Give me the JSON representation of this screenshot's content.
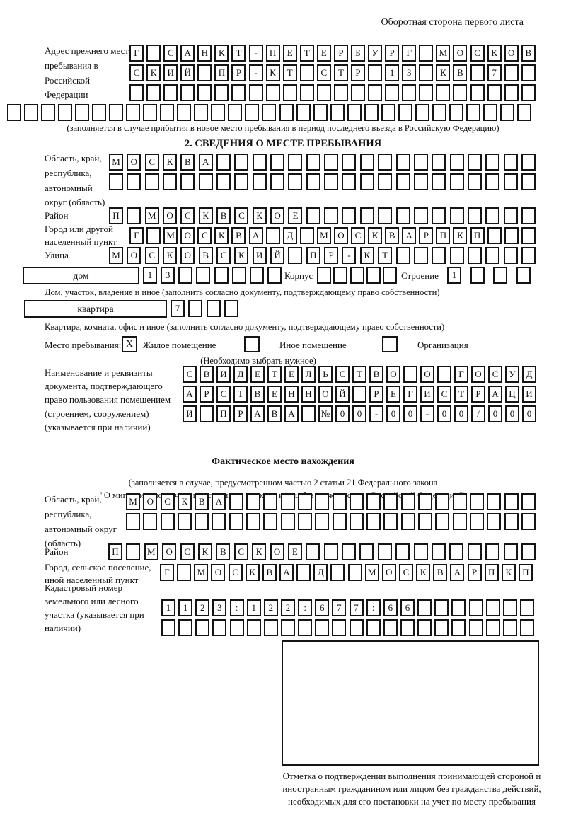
{
  "page_title": "Оборотная сторона первого листа",
  "prev_address": {
    "label": "Адрес прежнего места пребывания в Российской Федерации",
    "row1": [
      "Г",
      "",
      "С",
      "А",
      "Н",
      "К",
      "Т",
      "-",
      "П",
      "Е",
      "Т",
      "Е",
      "Р",
      "Б",
      "У",
      "Р",
      "Г",
      "",
      "М",
      "О",
      "С",
      "К",
      "О",
      "В"
    ],
    "row2": [
      "С",
      "К",
      "И",
      "Й",
      "",
      "П",
      "Р",
      "-",
      "К",
      "Т",
      "",
      "С",
      "Т",
      "Р",
      "",
      "1",
      "3",
      "",
      "К",
      "В",
      "",
      "7",
      "",
      ""
    ],
    "row3": [
      "",
      "",
      "",
      "",
      "",
      "",
      "",
      "",
      "",
      "",
      "",
      "",
      "",
      "",
      "",
      "",
      "",
      "",
      "",
      "",
      "",
      "",
      "",
      ""
    ],
    "row4": [
      "",
      "",
      "",
      "",
      "",
      "",
      "",
      "",
      "",
      "",
      "",
      "",
      "",
      "",
      "",
      "",
      "",
      "",
      "",
      "",
      "",
      "",
      "",
      "",
      "",
      "",
      "",
      "",
      "",
      "",
      ""
    ],
    "note": "(заполняется в случае прибытия в новое место пребывания в период последнего въезда в Российскую Федерацию)"
  },
  "section2": {
    "title": "2. СВЕДЕНИЯ О МЕСТЕ ПРЕБЫВАНИЯ",
    "region_label": "Область, край, республика, автономный округ (область)",
    "region_row1": [
      "М",
      "О",
      "С",
      "К",
      "В",
      "А",
      "",
      "",
      "",
      "",
      "",
      "",
      "",
      "",
      "",
      "",
      "",
      "",
      "",
      "",
      "",
      "",
      "",
      ""
    ],
    "region_row2": [
      "",
      "",
      "",
      "",
      "",
      "",
      "",
      "",
      "",
      "",
      "",
      "",
      "",
      "",
      "",
      "",
      "",
      "",
      "",
      "",
      "",
      "",
      "",
      ""
    ],
    "district_label": "Район",
    "district_row": [
      "П",
      "",
      "М",
      "О",
      "С",
      "К",
      "В",
      "С",
      "К",
      "О",
      "Е",
      "",
      "",
      "",
      "",
      "",
      "",
      "",
      "",
      "",
      "",
      "",
      "",
      ""
    ],
    "city_label": "Город или другой населенный пункт",
    "city_row": [
      "Г",
      "",
      "М",
      "О",
      "С",
      "К",
      "В",
      "А",
      "",
      "Д",
      "",
      "М",
      "О",
      "С",
      "К",
      "В",
      "А",
      "Р",
      "П",
      "К",
      "П",
      "",
      "",
      ""
    ],
    "street_label": "Улица",
    "street_row": [
      "М",
      "О",
      "С",
      "К",
      "О",
      "В",
      "С",
      "К",
      "И",
      "Й",
      "",
      "П",
      "Р",
      "-",
      "К",
      "Т",
      "",
      "",
      "",
      "",
      "",
      "",
      "",
      ""
    ],
    "house_box_label": "дом",
    "house_cells": [
      "1",
      "3",
      "",
      "",
      "",
      "",
      "",
      ""
    ],
    "korpus_label": "Корпус",
    "korpus_cells": [
      "",
      "",
      "",
      "",
      ""
    ],
    "stroenie_label": "Строение",
    "stroenie_cells": [
      "1",
      "",
      "",
      ""
    ],
    "house_note": "Дом, участок, владение и иное (заполнить согласно документу, подтверждающему право собственности)",
    "apartment_box_label": "квартира",
    "apartment_cells": [
      "7",
      "",
      "",
      ""
    ],
    "apartment_note": "Квартира, комната, офис и иное (заполнить согласно документу, подтверждающему право собственности)",
    "place_type": {
      "label": "Место пребывания:",
      "options": [
        {
          "label": "Жилое помещение",
          "checked": "X"
        },
        {
          "label": "Иное помещение",
          "checked": ""
        },
        {
          "label": "Организация",
          "checked": ""
        }
      ],
      "note": "(Необходимо выбрать нужное)"
    },
    "doc_label": "Наименование и реквизиты документа, подтверждающего право пользования помещением (строением, сооружением) (указывается при наличии)",
    "doc_row1": [
      "С",
      "В",
      "И",
      "Д",
      "Е",
      "Т",
      "Е",
      "Л",
      "Ь",
      "С",
      "Т",
      "В",
      "О",
      "",
      "О",
      "",
      "Г",
      "О",
      "С",
      "У",
      "Д"
    ],
    "doc_row2": [
      "А",
      "Р",
      "С",
      "Т",
      "В",
      "Е",
      "Н",
      "Н",
      "О",
      "Й",
      "",
      "Р",
      "Е",
      "Г",
      "И",
      "С",
      "Т",
      "Р",
      "А",
      "Ц",
      "И"
    ],
    "doc_row3": [
      "И",
      "",
      "П",
      "Р",
      "А",
      "В",
      "А",
      "",
      "№",
      "0",
      "0",
      "-",
      "0",
      "0",
      "-",
      "0",
      "0",
      "/",
      "0",
      "0",
      "0"
    ]
  },
  "actual_location": {
    "title": "Фактическое место нахождения",
    "note_line1": "(заполняется в случае, предусмотренном частью 2 статьи 21 Федерального закона",
    "note_line2": "\"О миграционном учете иностранных граждан и лиц без гражданства в Российской Федерации\")",
    "region_label": "Область, край, республика, автономный округ (область)",
    "region_row1": [
      "М",
      "О",
      "С",
      "К",
      "В",
      "А",
      "",
      "",
      "",
      "",
      "",
      "",
      "",
      "",
      "",
      "",
      "",
      "",
      "",
      "",
      "",
      "",
      "",
      ""
    ],
    "region_row2": [
      "",
      "",
      "",
      "",
      "",
      "",
      "",
      "",
      "",
      "",
      "",
      "",
      "",
      "",
      "",
      "",
      "",
      "",
      "",
      "",
      "",
      "",
      "",
      ""
    ],
    "district_label": "Район",
    "district_row": [
      "П",
      "",
      "М",
      "О",
      "С",
      "К",
      "В",
      "С",
      "К",
      "О",
      "Е",
      "",
      "",
      "",
      "",
      "",
      "",
      "",
      "",
      "",
      "",
      "",
      "",
      ""
    ],
    "city_label": "Город, сельское поселение, иной населенный пункт",
    "city_row": [
      "Г",
      "",
      "М",
      "О",
      "С",
      "К",
      "В",
      "А",
      "",
      "Д",
      "",
      "",
      "М",
      "О",
      "С",
      "К",
      "В",
      "А",
      "Р",
      "П",
      "К",
      "П"
    ],
    "cadastre_label": "Кадастровый номер земельного или лесного участка (указывается при наличии)",
    "cadastre_row1": [
      "1",
      "1",
      "2",
      "3",
      ":",
      "1",
      "2",
      "2",
      ":",
      "6",
      "7",
      "7",
      ":",
      "6",
      "6",
      "",
      "",
      "",
      "",
      "",
      "",
      ""
    ],
    "cadastre_row2": [
      "",
      "",
      "",
      "",
      "",
      "",
      "",
      "",
      "",
      "",
      "",
      "",
      "",
      "",
      "",
      "",
      "",
      "",
      "",
      "",
      "",
      ""
    ],
    "stamp_note": "Отметка о подтверждении выполнения принимающей стороной и иностранным гражданином или лицом без гражданства действий, необходимых для его постановки на учет по месту пребывания"
  }
}
